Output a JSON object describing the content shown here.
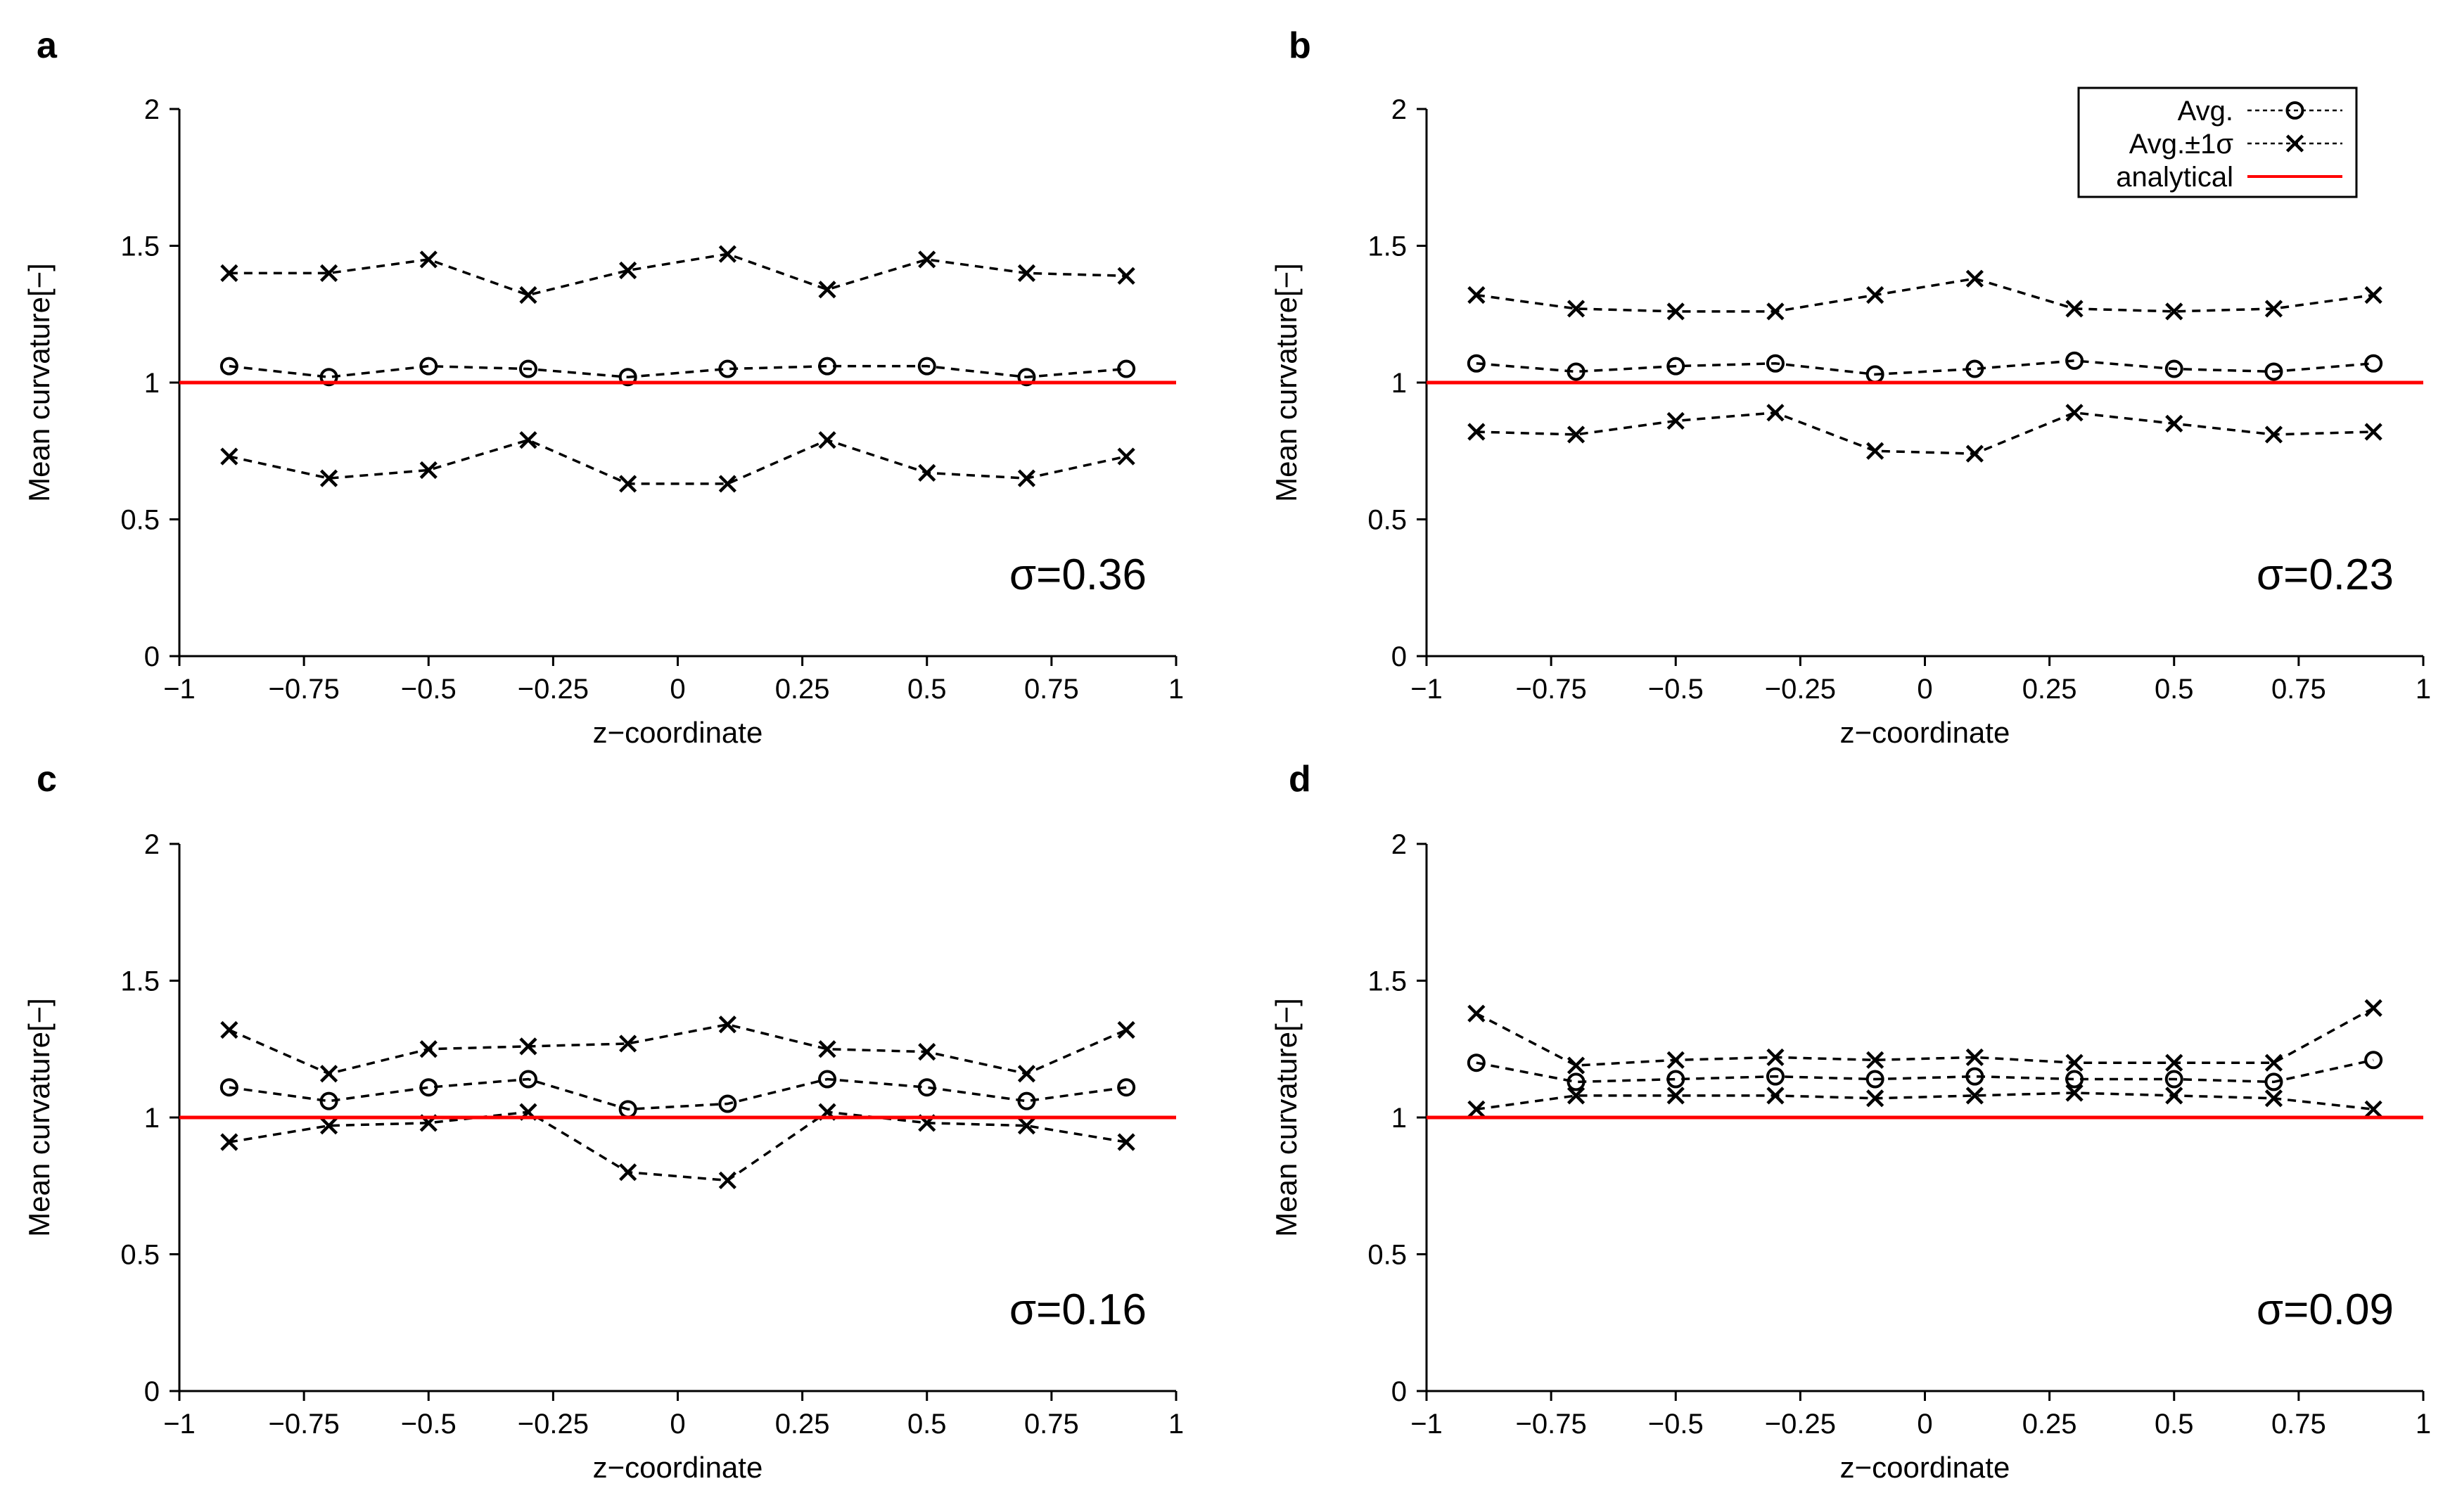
{
  "colors": {
    "axis": "#000000",
    "series": "#000000",
    "analytical": "#ff0000",
    "background": "#ffffff"
  },
  "legend": {
    "items": [
      {
        "label": "Avg.",
        "style": "dashed-circle"
      },
      {
        "label": "Avg.±1σ",
        "style": "dashed-cross"
      },
      {
        "label": "analytical",
        "style": "solid-red"
      }
    ]
  },
  "chart_data": [
    {
      "type": "line",
      "panel": "a",
      "xlabel": "z−coordinate",
      "ylabel": "Mean curvature[−]",
      "xlim": [
        -1,
        1
      ],
      "ylim": [
        0,
        2
      ],
      "xticks": [
        -1,
        -0.75,
        -0.5,
        -0.25,
        0,
        0.25,
        0.5,
        0.75,
        1
      ],
      "xtick_labels": [
        "−1",
        "−0.75",
        "−0.5",
        "−0.25",
        "0",
        "0.25",
        "0.5",
        "0.75",
        "1"
      ],
      "yticks": [
        0,
        0.5,
        1,
        1.5,
        2
      ],
      "ytick_labels": [
        "0",
        "0.5",
        "1",
        "1.5",
        "2"
      ],
      "sigma_label": "σ=0.36",
      "show_legend": false,
      "analytical": 1,
      "x": [
        -0.9,
        -0.7,
        -0.5,
        -0.3,
        -0.1,
        0.1,
        0.3,
        0.5,
        0.7,
        0.9
      ],
      "series": [
        {
          "name": "Avg.",
          "marker": "circle",
          "values": [
            1.06,
            1.02,
            1.06,
            1.05,
            1.02,
            1.05,
            1.06,
            1.06,
            1.02,
            1.05
          ]
        },
        {
          "name": "Avg.+1σ",
          "marker": "cross",
          "values": [
            1.4,
            1.4,
            1.45,
            1.32,
            1.41,
            1.47,
            1.34,
            1.45,
            1.4,
            1.39
          ]
        },
        {
          "name": "Avg.−1σ",
          "marker": "cross",
          "values": [
            0.73,
            0.65,
            0.68,
            0.79,
            0.63,
            0.63,
            0.79,
            0.67,
            0.65,
            0.73
          ]
        }
      ]
    },
    {
      "type": "line",
      "panel": "b",
      "xlabel": "z−coordinate",
      "ylabel": "Mean curvature[−]",
      "xlim": [
        -1,
        1
      ],
      "ylim": [
        0,
        2
      ],
      "xticks": [
        -1,
        -0.75,
        -0.5,
        -0.25,
        0,
        0.25,
        0.5,
        0.75,
        1
      ],
      "xtick_labels": [
        "−1",
        "−0.75",
        "−0.5",
        "−0.25",
        "0",
        "0.25",
        "0.5",
        "0.75",
        "1"
      ],
      "yticks": [
        0,
        0.5,
        1,
        1.5,
        2
      ],
      "ytick_labels": [
        "0",
        "0.5",
        "1",
        "1.5",
        "2"
      ],
      "sigma_label": "σ=0.23",
      "show_legend": true,
      "analytical": 1,
      "x": [
        -0.9,
        -0.7,
        -0.5,
        -0.3,
        -0.1,
        0.1,
        0.3,
        0.5,
        0.7,
        0.9
      ],
      "series": [
        {
          "name": "Avg.",
          "marker": "circle",
          "values": [
            1.07,
            1.04,
            1.06,
            1.07,
            1.03,
            1.05,
            1.08,
            1.05,
            1.04,
            1.07
          ]
        },
        {
          "name": "Avg.+1σ",
          "marker": "cross",
          "values": [
            1.32,
            1.27,
            1.26,
            1.26,
            1.32,
            1.38,
            1.27,
            1.26,
            1.27,
            1.32
          ]
        },
        {
          "name": "Avg.−1σ",
          "marker": "cross",
          "values": [
            0.82,
            0.81,
            0.86,
            0.89,
            0.75,
            0.74,
            0.89,
            0.85,
            0.81,
            0.82
          ]
        }
      ]
    },
    {
      "type": "line",
      "panel": "c",
      "xlabel": "z−coordinate",
      "ylabel": "Mean curvature[−]",
      "xlim": [
        -1,
        1
      ],
      "ylim": [
        0,
        2
      ],
      "xticks": [
        -1,
        -0.75,
        -0.5,
        -0.25,
        0,
        0.25,
        0.5,
        0.75,
        1
      ],
      "xtick_labels": [
        "−1",
        "−0.75",
        "−0.5",
        "−0.25",
        "0",
        "0.25",
        "0.5",
        "0.75",
        "1"
      ],
      "yticks": [
        0,
        0.5,
        1,
        1.5,
        2
      ],
      "ytick_labels": [
        "0",
        "0.5",
        "1",
        "1.5",
        "2"
      ],
      "sigma_label": "σ=0.16",
      "show_legend": false,
      "analytical": 1,
      "x": [
        -0.9,
        -0.7,
        -0.5,
        -0.3,
        -0.1,
        0.1,
        0.3,
        0.5,
        0.7,
        0.9
      ],
      "series": [
        {
          "name": "Avg.",
          "marker": "circle",
          "values": [
            1.11,
            1.06,
            1.11,
            1.14,
            1.03,
            1.05,
            1.14,
            1.11,
            1.06,
            1.11
          ]
        },
        {
          "name": "Avg.+1σ",
          "marker": "cross",
          "values": [
            1.32,
            1.16,
            1.25,
            1.26,
            1.27,
            1.34,
            1.25,
            1.24,
            1.16,
            1.32
          ]
        },
        {
          "name": "Avg.−1σ",
          "marker": "cross",
          "values": [
            0.91,
            0.97,
            0.98,
            1.02,
            0.8,
            0.77,
            1.02,
            0.98,
            0.97,
            0.91
          ]
        }
      ]
    },
    {
      "type": "line",
      "panel": "d",
      "xlabel": "z−coordinate",
      "ylabel": "Mean curvature[−]",
      "xlim": [
        -1,
        1
      ],
      "ylim": [
        0,
        2
      ],
      "xticks": [
        -1,
        -0.75,
        -0.5,
        -0.25,
        0,
        0.25,
        0.5,
        0.75,
        1
      ],
      "xtick_labels": [
        "−1",
        "−0.75",
        "−0.5",
        "−0.25",
        "0",
        "0.25",
        "0.5",
        "0.75",
        "1"
      ],
      "yticks": [
        0,
        0.5,
        1,
        1.5,
        2
      ],
      "ytick_labels": [
        "0",
        "0.5",
        "1",
        "1.5",
        "2"
      ],
      "sigma_label": "σ=0.09",
      "show_legend": false,
      "analytical": 1,
      "x": [
        -0.9,
        -0.7,
        -0.5,
        -0.3,
        -0.1,
        0.1,
        0.3,
        0.5,
        0.7,
        0.9
      ],
      "series": [
        {
          "name": "Avg.",
          "marker": "circle",
          "values": [
            1.2,
            1.13,
            1.14,
            1.15,
            1.14,
            1.15,
            1.14,
            1.14,
            1.13,
            1.21
          ]
        },
        {
          "name": "Avg.+1σ",
          "marker": "cross",
          "values": [
            1.38,
            1.19,
            1.21,
            1.22,
            1.21,
            1.22,
            1.2,
            1.2,
            1.2,
            1.4
          ]
        },
        {
          "name": "Avg.−1σ",
          "marker": "cross",
          "values": [
            1.03,
            1.08,
            1.08,
            1.08,
            1.07,
            1.08,
            1.09,
            1.08,
            1.07,
            1.03
          ]
        }
      ]
    }
  ]
}
